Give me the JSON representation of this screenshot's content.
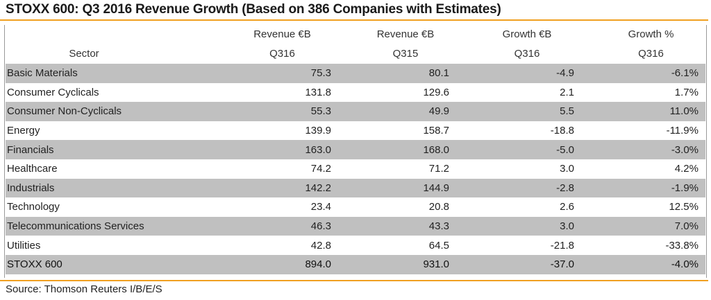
{
  "title": "STOXX 600: Q3 2016 Revenue Growth (Based on 386 Companies with Estimates)",
  "source": "Source: Thomson Reuters I/B/E/S",
  "colors": {
    "accent_rule": "#f0a020",
    "row_shade": "#c0c0c0"
  },
  "chart_data": {
    "type": "table",
    "title": "STOXX 600: Q3 2016 Revenue Growth (Based on 386 Companies with Estimates)",
    "headers": {
      "row1": [
        "",
        "Revenue €B",
        "Revenue €B",
        "Growth €B",
        "Growth %"
      ],
      "row2": [
        "Sector",
        "Q316",
        "Q315",
        "Q316",
        "Q316"
      ]
    },
    "rows": [
      {
        "sector": "Basic Materials",
        "rev_q316": "75.3",
        "rev_q315": "80.1",
        "growth_eb": "-4.9",
        "growth_pct": "-6.1%"
      },
      {
        "sector": "Consumer Cyclicals",
        "rev_q316": "131.8",
        "rev_q315": "129.6",
        "growth_eb": "2.1",
        "growth_pct": "1.7%"
      },
      {
        "sector": "Consumer Non-Cyclicals",
        "rev_q316": "55.3",
        "rev_q315": "49.9",
        "growth_eb": "5.5",
        "growth_pct": "11.0%"
      },
      {
        "sector": "Energy",
        "rev_q316": "139.9",
        "rev_q315": "158.7",
        "growth_eb": "-18.8",
        "growth_pct": "-11.9%"
      },
      {
        "sector": "Financials",
        "rev_q316": "163.0",
        "rev_q315": "168.0",
        "growth_eb": "-5.0",
        "growth_pct": "-3.0%"
      },
      {
        "sector": "Healthcare",
        "rev_q316": "74.2",
        "rev_q315": "71.2",
        "growth_eb": "3.0",
        "growth_pct": "4.2%"
      },
      {
        "sector": "Industrials",
        "rev_q316": "142.2",
        "rev_q315": "144.9",
        "growth_eb": "-2.8",
        "growth_pct": "-1.9%"
      },
      {
        "sector": "Technology",
        "rev_q316": "23.4",
        "rev_q315": "20.8",
        "growth_eb": "2.6",
        "growth_pct": "12.5%"
      },
      {
        "sector": "Telecommunications Services",
        "rev_q316": "46.3",
        "rev_q315": "43.3",
        "growth_eb": "3.0",
        "growth_pct": "7.0%"
      },
      {
        "sector": "Utilities",
        "rev_q316": "42.8",
        "rev_q315": "64.5",
        "growth_eb": "-21.8",
        "growth_pct": "-33.8%"
      }
    ],
    "total": {
      "sector": "STOXX 600",
      "rev_q316": "894.0",
      "rev_q315": "931.0",
      "growth_eb": "-37.0",
      "growth_pct": "-4.0%"
    }
  }
}
